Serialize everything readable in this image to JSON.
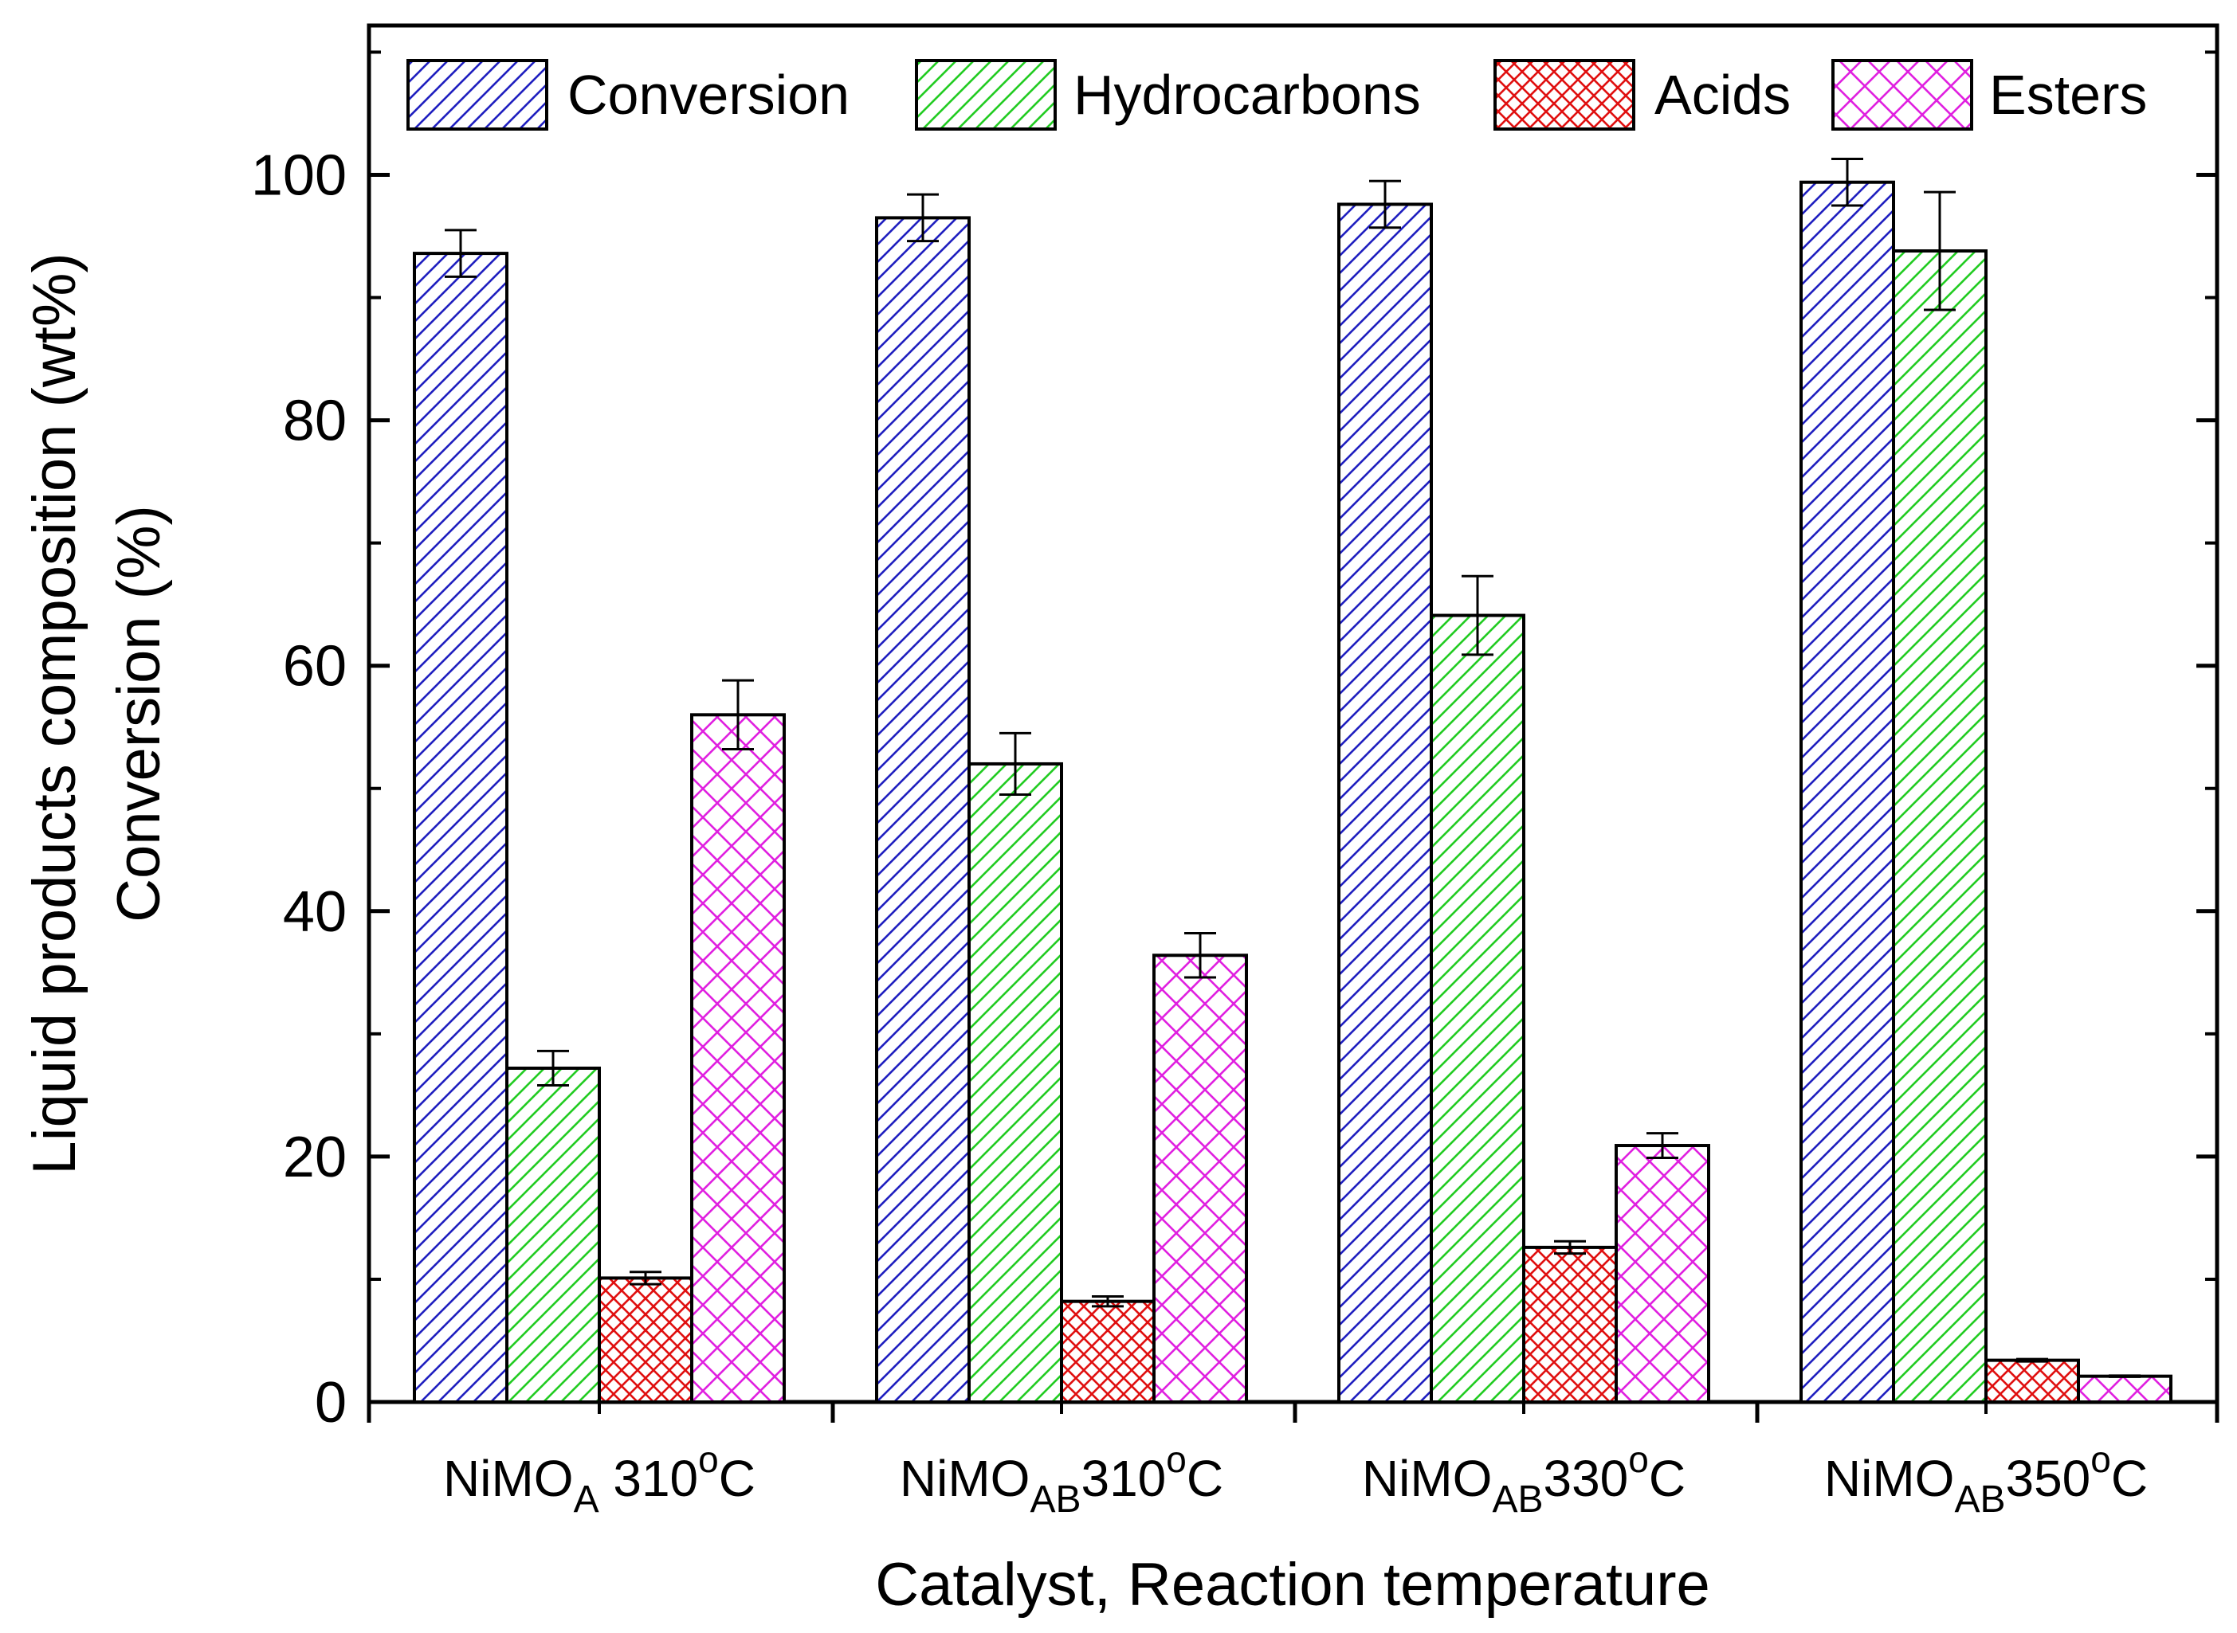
{
  "chart_data": {
    "type": "bar",
    "title": "",
    "xlabel": "Catalyst, Reaction temperature",
    "ylabel_lines": [
      "Liquid products composition (wt%)",
      "Conversion (%)"
    ],
    "ylim": [
      0,
      112
    ],
    "yticks": [
      0,
      20,
      40,
      60,
      80,
      100
    ],
    "yticks_labels": [
      "0",
      "20",
      "40",
      "60",
      "80",
      "100"
    ],
    "categories": [
      {
        "base": "NiMO",
        "sub": "A",
        "temp": " 310",
        "sup": "o",
        "unit": "C"
      },
      {
        "base": "NiMO",
        "sub": "AB",
        "temp": "310",
        "sup": "o",
        "unit": "C"
      },
      {
        "base": "NiMO",
        "sub": "AB",
        "temp": "330",
        "sup": "o",
        "unit": "C"
      },
      {
        "base": "NiMO",
        "sub": "AB",
        "temp": "350",
        "sup": "o",
        "unit": "C"
      }
    ],
    "legend_position": "top",
    "series": [
      {
        "name": "Conversion",
        "color": "#1f1fbf",
        "pattern": "diag-right",
        "values": [
          93.6,
          96.5,
          97.6,
          99.4
        ],
        "errors": [
          1.9,
          1.9,
          1.9,
          1.9
        ]
      },
      {
        "name": "Hydrocarbons",
        "color": "#22cc22",
        "pattern": "diag-right",
        "values": [
          27.2,
          52.0,
          64.1,
          93.8
        ],
        "errors": [
          1.4,
          2.5,
          3.2,
          4.8
        ]
      },
      {
        "name": "Acids",
        "color": "#e01010",
        "pattern": "crosshatch-dense",
        "values": [
          10.1,
          8.2,
          12.6,
          3.4
        ],
        "errors": [
          0.5,
          0.4,
          0.5,
          0.1
        ]
      },
      {
        "name": "Esters",
        "color": "#e020e0",
        "pattern": "crosshatch",
        "values": [
          56.0,
          36.4,
          20.9,
          2.1
        ],
        "errors": [
          2.8,
          1.8,
          1.0,
          0.05
        ]
      }
    ]
  }
}
